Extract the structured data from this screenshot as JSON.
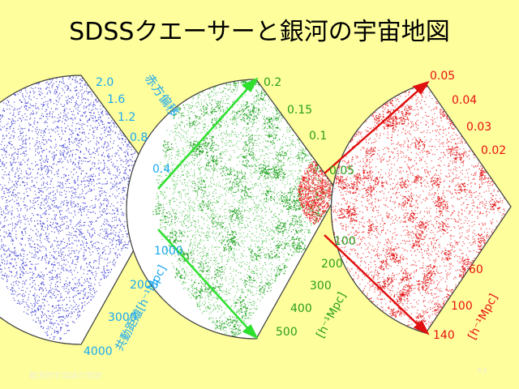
{
  "title": "SDSSクエーサーと銀河の宇宙地図",
  "footer": "観測的宇宙論の現状",
  "page_number": "53",
  "colors": {
    "background": "#fefe9c",
    "quasar_points": "#2828d0",
    "galaxy_points": "#18b018",
    "zoom_points": "#ee1010",
    "blue_label": "#1aa8f0",
    "green_label": "#2a9e1c",
    "red_label": "#e81010"
  },
  "wedges": {
    "quasar": {
      "axis_label_redshift": "赤方偏移",
      "axis_label_distance": "共動距離[h⁻¹Mpc]",
      "redshift_ticks": [
        "2.0",
        "1.6",
        "1.2",
        "0.8",
        "0.4"
      ],
      "distance_ticks": [
        "1000",
        "2000",
        "3000",
        "4000"
      ]
    },
    "galaxy": {
      "axis_label_distance": "[h⁻¹Mpc]",
      "redshift_ticks": [
        "0.2",
        "0.15",
        "0.1",
        "0.05"
      ],
      "distance_ticks": [
        "100",
        "200",
        "300",
        "400",
        "500"
      ]
    },
    "zoom": {
      "axis_label_distance": "[h⁻¹Mpc]",
      "redshift_ticks": [
        "0.05",
        "0.04",
        "0.03",
        "0.02"
      ],
      "distance_ticks": [
        "60",
        "100",
        "140"
      ]
    }
  }
}
